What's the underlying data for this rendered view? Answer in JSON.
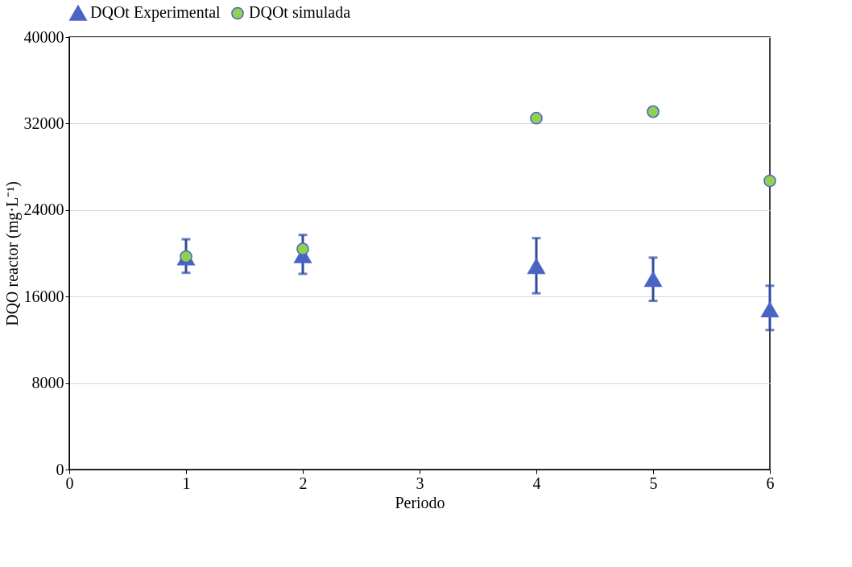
{
  "chart_data": {
    "type": "scatter",
    "xlabel": "Periodo",
    "ylabel": "DQO reactor (mg·L⁻¹)",
    "xlim": [
      0,
      6
    ],
    "xticks": [
      0,
      1,
      2,
      3,
      4,
      5,
      6
    ],
    "ylim": [
      0,
      40000
    ],
    "yticks": [
      0,
      8000,
      16000,
      24000,
      32000,
      40000
    ],
    "grid": "y",
    "legend": "top",
    "series": [
      {
        "name": "DQOt Experimental",
        "color": "#4a64c6",
        "marker": "triangle",
        "x": [
          1,
          2,
          4,
          5,
          6
        ],
        "values": [
          19600,
          19800,
          18800,
          17600,
          14800
        ],
        "errors": [
          [
            18200,
            21300
          ],
          [
            18100,
            21700
          ],
          [
            16300,
            21400
          ],
          [
            15600,
            19600
          ],
          [
            12900,
            17000
          ]
        ]
      },
      {
        "name": "DQOt simulada",
        "color": "#92d050",
        "marker": "circle",
        "x": [
          1,
          2,
          4,
          5,
          6
        ],
        "values": [
          19700,
          20400,
          32500,
          33100,
          26700
        ]
      }
    ]
  }
}
